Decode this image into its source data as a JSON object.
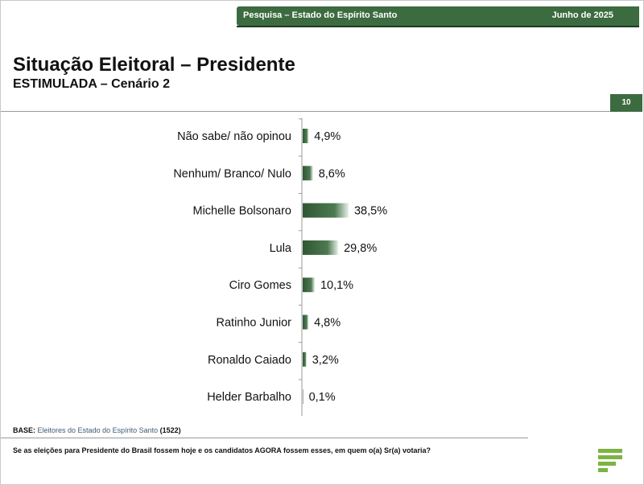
{
  "header": {
    "survey": "Pesquisa – Estado do Espírito Santo",
    "date": "Junho de 2025"
  },
  "title": "Situação Eleitoral – Presidente",
  "subtitle": "ESTIMULADA – Cenário 2",
  "page_number": "10",
  "footer": {
    "base_label": "BASE:",
    "base_text": "Eleitores do Estado do Espírito Santo",
    "base_n": "(1522)",
    "question": "Se as eleições para Presidente do Brasil fossem hoje e os candidatos AGORA fossem esses, em quem o(a) Sr(a) votaria?"
  },
  "colors": {
    "bar": "#3c6b40",
    "accent": "#3c6b40",
    "logo": "#7db343"
  },
  "chart_data": {
    "type": "bar",
    "orientation": "horizontal",
    "categories": [
      "Não sabe/ não opinou",
      "Nenhum/ Branco/ Nulo",
      "Michelle Bolsonaro",
      "Lula",
      "Ciro Gomes",
      "Ratinho Junior",
      "Ronaldo Caiado",
      "Helder Barbalho"
    ],
    "values": [
      4.9,
      8.6,
      38.5,
      29.8,
      10.1,
      4.8,
      3.2,
      0.1
    ],
    "labels": [
      "4,9%",
      "8,6%",
      "38,5%",
      "29,8%",
      "10,1%",
      "4,8%",
      "3,2%",
      "0,1%"
    ],
    "xlim": [
      0,
      100
    ],
    "grid": false
  }
}
